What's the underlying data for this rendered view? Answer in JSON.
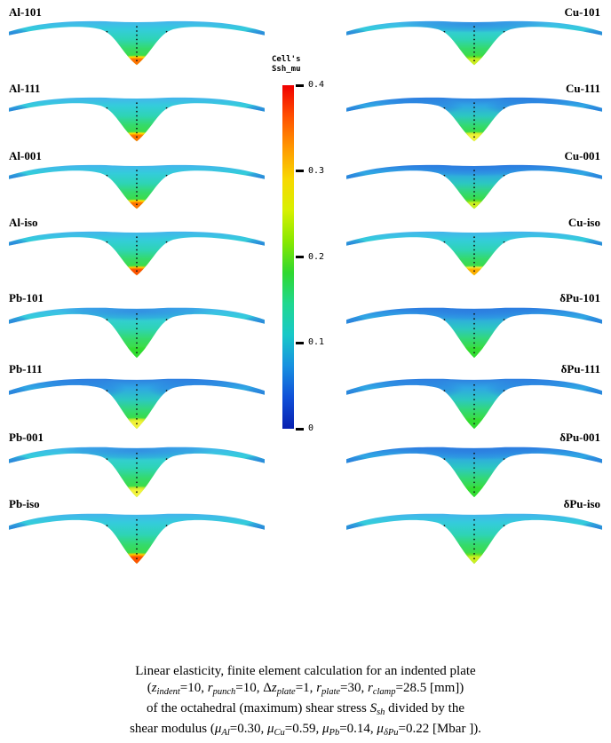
{
  "figure": {
    "colorbar": {
      "title_line1": "Cell's",
      "title_line2": "Ssh_mu",
      "max": 0.4,
      "min": 0,
      "ticks": [
        "0.4",
        "0.3",
        "0.2",
        "0.1",
        "0"
      ],
      "tick_values": [
        0.4,
        0.3,
        0.2,
        0.1,
        0
      ],
      "colors_top_to_bottom": [
        "#f00000",
        "#ff5000",
        "#ff9800",
        "#f8d800",
        "#d8f000",
        "#88e800",
        "#30d830",
        "#20d890",
        "#18c8c8",
        "#1890e0",
        "#1050d8",
        "#0820b0"
      ]
    },
    "plots": [
      {
        "label": "Al-101",
        "column": "left",
        "row": 1,
        "wing": "cyan",
        "tip": "orange",
        "zones": "tips"
      },
      {
        "label": "Cu-101",
        "column": "right",
        "row": 1,
        "wing": "cyan",
        "tip": "yellow-green",
        "zones": "top"
      },
      {
        "label": "Al-111",
        "column": "left",
        "row": 2,
        "wing": "cyan",
        "tip": "orange",
        "zones": "tips"
      },
      {
        "label": "Cu-111",
        "column": "right",
        "row": 2,
        "wing": "blue",
        "tip": "yellow",
        "zones": "wings"
      },
      {
        "label": "Al-001",
        "column": "left",
        "row": 3,
        "wing": "cyan",
        "tip": "orange",
        "zones": "tips"
      },
      {
        "label": "Cu-001",
        "column": "right",
        "row": 3,
        "wing": "blue",
        "tip": "yellow-green",
        "zones": "top"
      },
      {
        "label": "Al-iso",
        "column": "left",
        "row": 4,
        "wing": "cyan",
        "tip": "red-orange",
        "zones": "tips"
      },
      {
        "label": "Cu-iso",
        "column": "right",
        "row": 4,
        "wing": "cyan",
        "tip": "yellow-orange",
        "zones": "tips"
      },
      {
        "label": "Pb-101",
        "column": "left",
        "row": 5,
        "wing": "cyan",
        "tip": "green",
        "zones": "top"
      },
      {
        "label": "δPu-101",
        "column": "right",
        "row": 5,
        "wing": "blue",
        "tip": "green",
        "zones": "top"
      },
      {
        "label": "Pb-111",
        "column": "left",
        "row": 6,
        "wing": "blue",
        "tip": "yellow",
        "zones": "wings"
      },
      {
        "label": "δPu-111",
        "column": "right",
        "row": 6,
        "wing": "blue",
        "tip": "green",
        "zones": "wings"
      },
      {
        "label": "Pb-001",
        "column": "left",
        "row": 7,
        "wing": "cyan",
        "tip": "yellow",
        "zones": "top"
      },
      {
        "label": "δPu-001",
        "column": "right",
        "row": 7,
        "wing": "blue",
        "tip": "green",
        "zones": "top"
      },
      {
        "label": "Pb-iso",
        "column": "left",
        "row": 8,
        "wing": "cyan",
        "tip": "red-orange",
        "zones": "tips"
      },
      {
        "label": "δPu-iso",
        "column": "right",
        "row": 8,
        "wing": "cyan",
        "tip": "yellow-green",
        "zones": "tips"
      }
    ]
  },
  "palette": {
    "wing_cyan": [
      "#44b4ec",
      "#34ccdc",
      "#2ed4b4",
      "#34da6c",
      "#3cdc46",
      "#46e142"
    ],
    "wing_blue": [
      "#2e7ee0",
      "#2fa6e4",
      "#2cc8c0",
      "#32d878",
      "#38dc44",
      "#40e040"
    ],
    "tips": {
      "orange": [
        "#ff7300",
        "#ffdf00"
      ],
      "red-orange": [
        "#ff5300",
        "#ffc800"
      ],
      "yellow": [
        "#f2f23a",
        "#cdeb28"
      ],
      "yellow-orange": [
        "#ffb000",
        "#eeee33"
      ],
      "yellow-green": [
        "#ccee22",
        "#66e022"
      ],
      "green": [
        "#32dd32",
        "#32dd32"
      ]
    },
    "blue_zone": "#2a77e0",
    "dots": "#111111",
    "dash": "#b95a4a"
  },
  "caption": {
    "lines": [
      [
        {
          "text": "Linear elasticity, finite element calculation for an indented plate",
          "style": "plain"
        }
      ],
      [
        {
          "text": "(",
          "style": "plain"
        },
        {
          "text": "z",
          "style": "var"
        },
        {
          "text": "indent",
          "style": "sub"
        },
        {
          "text": "=10, ",
          "style": "plain"
        },
        {
          "text": "r",
          "style": "var"
        },
        {
          "text": "punch",
          "style": "sub"
        },
        {
          "text": "=10, Δ",
          "style": "plain"
        },
        {
          "text": "z",
          "style": "var"
        },
        {
          "text": "plate",
          "style": "sub"
        },
        {
          "text": "=1, ",
          "style": "plain"
        },
        {
          "text": "r",
          "style": "var"
        },
        {
          "text": "plate",
          "style": "sub"
        },
        {
          "text": "=30, ",
          "style": "plain"
        },
        {
          "text": "r",
          "style": "var"
        },
        {
          "text": "clamp",
          "style": "sub"
        },
        {
          "text": "=28.5 [mm])",
          "style": "plain"
        }
      ],
      [
        {
          "text": "of the octahedral (maximum) shear stress ",
          "style": "plain"
        },
        {
          "text": "S",
          "style": "var"
        },
        {
          "text": "sh",
          "style": "sub"
        },
        {
          "text": " divided by the",
          "style": "plain"
        }
      ],
      [
        {
          "text": "shear modulus (",
          "style": "plain"
        },
        {
          "text": "μ",
          "style": "var"
        },
        {
          "text": "Al",
          "style": "sub"
        },
        {
          "text": "=0.30, ",
          "style": "plain"
        },
        {
          "text": "μ",
          "style": "var"
        },
        {
          "text": "Cu",
          "style": "sub"
        },
        {
          "text": "=0.59, ",
          "style": "plain"
        },
        {
          "text": "μ",
          "style": "var"
        },
        {
          "text": "Pb",
          "style": "sub"
        },
        {
          "text": "=0.14, ",
          "style": "plain"
        },
        {
          "text": "μ",
          "style": "var"
        },
        {
          "text": "δPu",
          "style": "sub"
        },
        {
          "text": "=0.22 [Mbar ]).",
          "style": "plain"
        }
      ]
    ]
  },
  "chart_data": {
    "type": "heatmap",
    "note": "Grid of 16 (8 rows x 2 columns) 3D finite-element surface plots of an indented circular plate; surface color encodes octahedral shear stress divided by shear modulus (Ssh/mu), rainbow colormap blue(0) to red(0.4).",
    "colorbar": {
      "label": "Cell's Ssh_mu",
      "range": [
        0,
        0.4
      ],
      "ticks": [
        0,
        0.1,
        0.2,
        0.3,
        0.4
      ],
      "orientation": "vertical",
      "position": "center between columns"
    },
    "panels": [
      {
        "label": "Al-101",
        "peak_Ssh_mu_est": 0.35,
        "tip_color": "orange"
      },
      {
        "label": "Cu-101",
        "peak_Ssh_mu_est": 0.27,
        "tip_color": "yellow-green"
      },
      {
        "label": "Al-111",
        "peak_Ssh_mu_est": 0.35,
        "tip_color": "orange"
      },
      {
        "label": "Cu-111",
        "peak_Ssh_mu_est": 0.3,
        "tip_color": "yellow"
      },
      {
        "label": "Al-001",
        "peak_Ssh_mu_est": 0.35,
        "tip_color": "orange"
      },
      {
        "label": "Cu-001",
        "peak_Ssh_mu_est": 0.27,
        "tip_color": "yellow-green"
      },
      {
        "label": "Al-iso",
        "peak_Ssh_mu_est": 0.37,
        "tip_color": "red-orange"
      },
      {
        "label": "Cu-iso",
        "peak_Ssh_mu_est": 0.33,
        "tip_color": "yellow-orange"
      },
      {
        "label": "Pb-101",
        "peak_Ssh_mu_est": 0.23,
        "tip_color": "green"
      },
      {
        "label": "δPu-101",
        "peak_Ssh_mu_est": 0.23,
        "tip_color": "green"
      },
      {
        "label": "Pb-111",
        "peak_Ssh_mu_est": 0.3,
        "tip_color": "yellow"
      },
      {
        "label": "δPu-111",
        "peak_Ssh_mu_est": 0.23,
        "tip_color": "green"
      },
      {
        "label": "Pb-001",
        "peak_Ssh_mu_est": 0.3,
        "tip_color": "yellow"
      },
      {
        "label": "δPu-001",
        "peak_Ssh_mu_est": 0.23,
        "tip_color": "green"
      },
      {
        "label": "Pb-iso",
        "peak_Ssh_mu_est": 0.37,
        "tip_color": "red-orange"
      },
      {
        "label": "δPu-iso",
        "peak_Ssh_mu_est": 0.27,
        "tip_color": "yellow-green"
      }
    ],
    "caption_plain": "Linear elasticity, finite element calculation for an indented plate (z_indent=10, r_punch=10, Δz_plate=1, r_plate=30, r_clamp=28.5 [mm]) of the octahedral (maximum) shear stress S_sh divided by the shear modulus (μ_Al=0.30, μ_Cu=0.59, μ_Pb=0.14, μ_δPu=0.22 [Mbar ])."
  }
}
